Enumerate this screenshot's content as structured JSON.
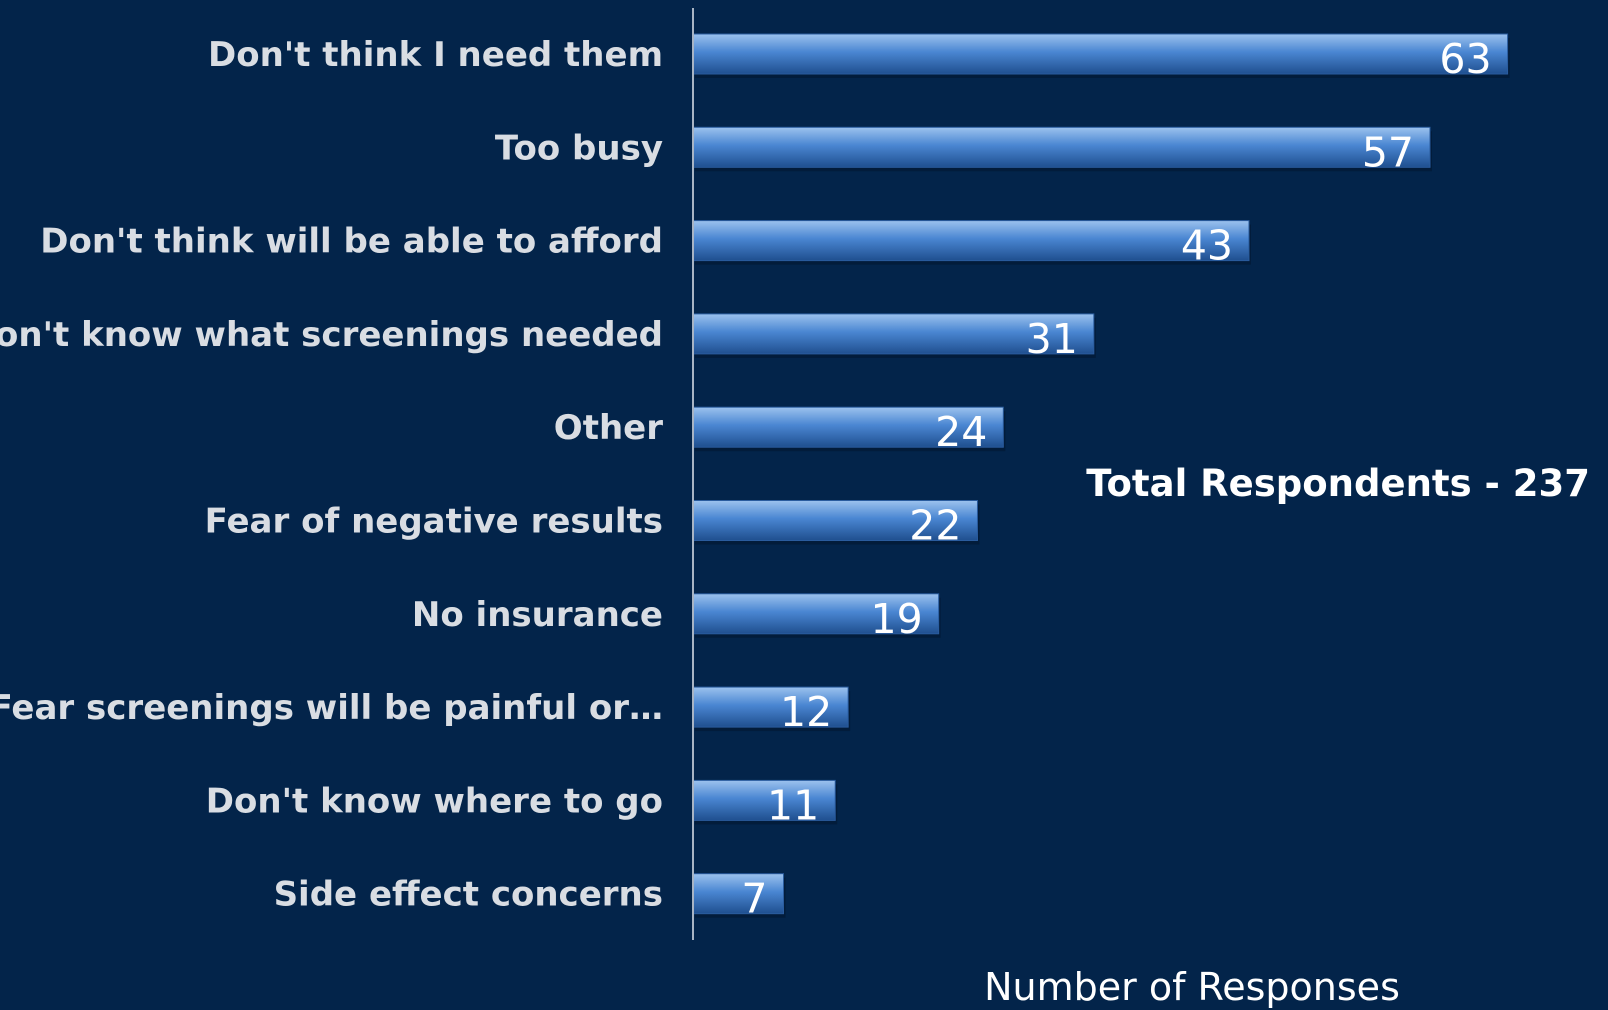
{
  "chart_data": {
    "type": "bar",
    "orientation": "horizontal",
    "categories": [
      "Don't think I need them",
      "Too busy",
      "Don't think will be able to afford",
      "Don't know what screenings needed",
      "Other",
      "Fear of negative results",
      "No insurance",
      "Fear screenings will be painful or…",
      "Don't know where to go",
      "Side effect concerns"
    ],
    "values": [
      63,
      57,
      43,
      31,
      24,
      22,
      19,
      12,
      11,
      7
    ],
    "data_labels": [
      "63",
      "57",
      "43",
      "31",
      "24",
      "22",
      "19",
      "12",
      "11",
      "7"
    ],
    "xlabel": "Number of Responses",
    "ylabel": "",
    "xlim": [
      0,
      65
    ],
    "grid": false,
    "legend": "none",
    "annotation": "Total Respondents - 237",
    "colors": {
      "background": "#03244a",
      "bar_top": "#9cc2ee",
      "bar_mid": "#4a86d2",
      "bar_bottom": "#1f4f8f",
      "axis": "#a8b4c4",
      "label": "#d9dde3",
      "value_label": "#ffffff"
    }
  }
}
